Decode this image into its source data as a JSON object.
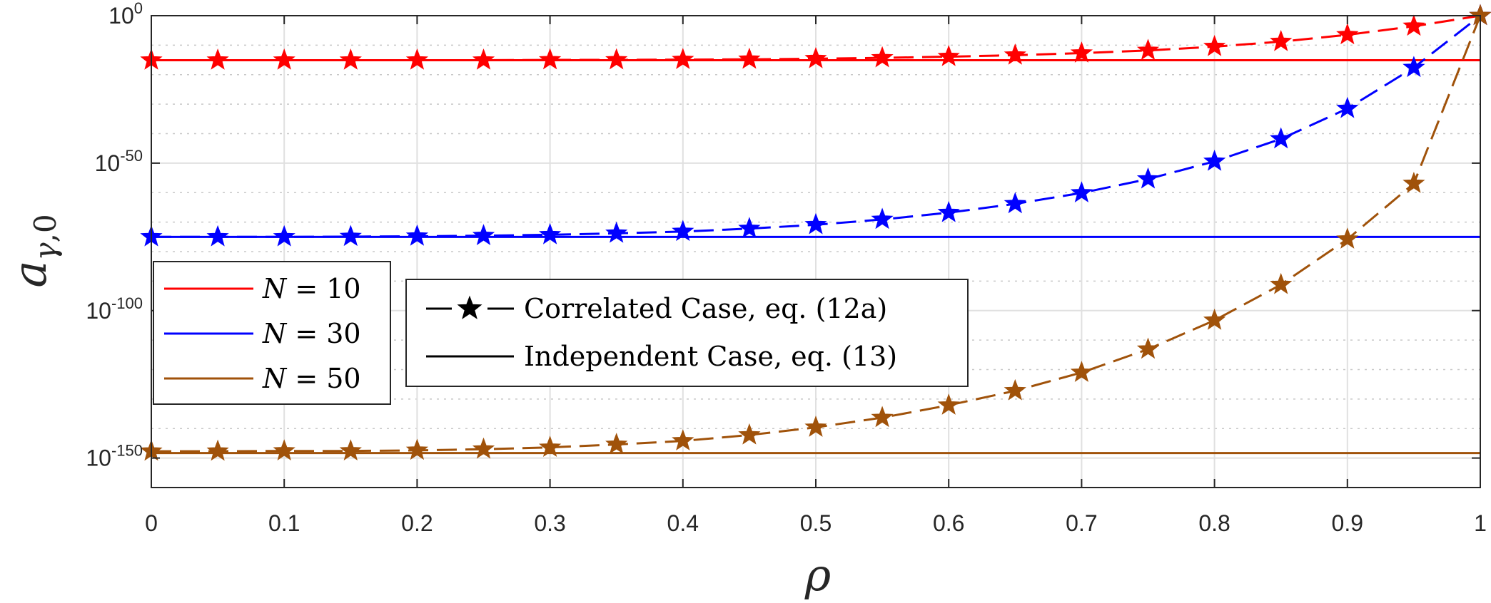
{
  "chart_data": {
    "type": "line",
    "xlabel": "ρ",
    "ylabel": "a_{γ,0}",
    "xlim": [
      0,
      1
    ],
    "ylim": [
      -160,
      0
    ],
    "yscale": "log",
    "grid": true,
    "minor_grid": true,
    "x_ticks": [
      "0",
      "0.1",
      "0.2",
      "0.3",
      "0.4",
      "0.5",
      "0.6",
      "0.7",
      "0.8",
      "0.9",
      "1"
    ],
    "y_ticks": [
      {
        "base": "10",
        "exp": "0",
        "value": 0
      },
      {
        "base": "10",
        "exp": "-50",
        "value": -50
      },
      {
        "base": "10",
        "exp": "-100",
        "value": -100
      },
      {
        "base": "10",
        "exp": "-150",
        "value": -150
      }
    ],
    "x": [
      0,
      0.05,
      0.1,
      0.15,
      0.2,
      0.25,
      0.3,
      0.35,
      0.4,
      0.45,
      0.5,
      0.55,
      0.6,
      0.65,
      0.7,
      0.75,
      0.8,
      0.85,
      0.9,
      0.95,
      1.0
    ],
    "note": "y values are log10 of a_{γ,0}",
    "series": [
      {
        "name": "N = 10",
        "color": "#ff0000",
        "correlated_log10": [
          -15.1,
          -15.1,
          -15.1,
          -15.1,
          -15.1,
          -15.1,
          -15.0,
          -15.0,
          -14.9,
          -14.8,
          -14.6,
          -14.3,
          -13.9,
          -13.4,
          -12.7,
          -11.8,
          -10.5,
          -8.8,
          -6.5,
          -3.6,
          0
        ],
        "independent_log10": -15.1
      },
      {
        "name": "N = 30",
        "color": "#0000ff",
        "correlated_log10": [
          -75.0,
          -75.0,
          -75.0,
          -74.9,
          -74.8,
          -74.6,
          -74.3,
          -73.8,
          -73.2,
          -72.2,
          -70.9,
          -69.1,
          -66.8,
          -63.8,
          -60.1,
          -55.4,
          -49.4,
          -41.8,
          -31.5,
          -17.6,
          0
        ],
        "independent_log10": -75.0
      },
      {
        "name": "N = 50",
        "color": "#a0520a",
        "correlated_log10": [
          -147.7,
          -147.7,
          -147.6,
          -147.6,
          -147.4,
          -147.0,
          -146.4,
          -145.4,
          -144.2,
          -142.2,
          -139.6,
          -136.3,
          -132.1,
          -127.2,
          -121.0,
          -113.1,
          -103.3,
          -91.2,
          -75.8,
          -56.9,
          0
        ],
        "independent_log10": -148.3
      }
    ],
    "legend_colors": {
      "position": "left",
      "entries": [
        {
          "math": "N = 10",
          "color": "#ff0000"
        },
        {
          "math": "N = 30",
          "color": "#0000ff"
        },
        {
          "math": "N = 50",
          "color": "#a0520a"
        }
      ]
    },
    "legend_styles": {
      "position": "center-left",
      "entries": [
        {
          "label": "Correlated Case, eq. (12a)",
          "style": "dashed-star"
        },
        {
          "label": "Independent Case, eq. (13)",
          "style": "solid"
        }
      ]
    }
  }
}
